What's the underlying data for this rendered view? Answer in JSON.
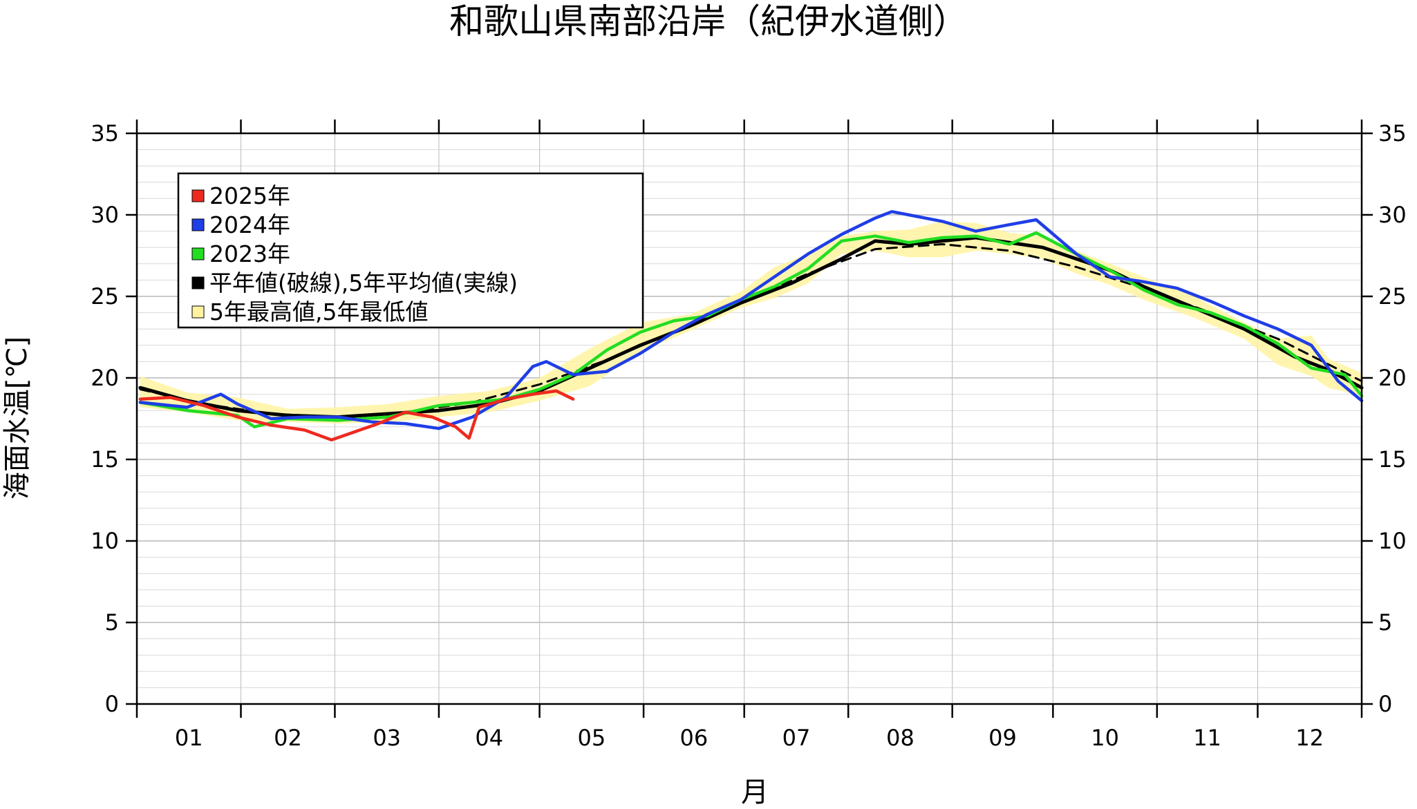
{
  "chart_data": {
    "type": "line",
    "title": "和歌山県南部沿岸（紀伊水道側）",
    "xlabel": "月",
    "ylabel": "海面水温[℃]",
    "ylim": [
      0,
      35
    ],
    "xlim": [
      0,
      365
    ],
    "y_ticks": [
      "0",
      "5",
      "10",
      "15",
      "20",
      "25",
      "30",
      "35"
    ],
    "x_ticks": [
      "01",
      "02",
      "03",
      "04",
      "05",
      "06",
      "07",
      "08",
      "09",
      "10",
      "11",
      "12"
    ],
    "grid": true,
    "legend_position": "top-left",
    "legend": [
      {
        "label": "2025年",
        "color": "#ee2a1f"
      },
      {
        "label": "2024年",
        "color": "#1f3ee6"
      },
      {
        "label": "2023年",
        "color": "#22dd22"
      },
      {
        "label": "平年値(破線),5年平均値(実線)",
        "color": "#000000"
      },
      {
        "label": "5年最高値,5年最低値",
        "color": "#fff3a0"
      }
    ],
    "series": [
      {
        "name": "2025年",
        "color": "#ee2a1f",
        "x": [
          1,
          10,
          20,
          30,
          40,
          50,
          58,
          65,
          72,
          80,
          88,
          95,
          99,
          102,
          110,
          118,
          125,
          130
        ],
        "y": [
          18.7,
          18.8,
          18.3,
          17.6,
          17.1,
          16.8,
          16.2,
          16.7,
          17.2,
          17.9,
          17.6,
          17.0,
          16.3,
          18.2,
          18.7,
          19.0,
          19.2,
          18.7
        ]
      },
      {
        "name": "2024年",
        "color": "#1f3ee6",
        "x": [
          1,
          15,
          25,
          30,
          40,
          50,
          60,
          70,
          80,
          90,
          100,
          110,
          118,
          122,
          130,
          140,
          150,
          160,
          170,
          180,
          190,
          200,
          210,
          215,
          220,
          225,
          230,
          240,
          250,
          260,
          268,
          280,
          290,
          300,
          310,
          320,
          330,
          340,
          350,
          358,
          365
        ],
        "y": [
          18.5,
          18.2,
          19.0,
          18.4,
          17.5,
          17.6,
          17.6,
          17.3,
          17.2,
          16.9,
          17.6,
          18.8,
          20.7,
          21.0,
          20.2,
          20.4,
          21.5,
          22.8,
          23.9,
          24.8,
          26.2,
          27.6,
          28.8,
          29.3,
          29.8,
          30.2,
          30.0,
          29.6,
          29.0,
          29.4,
          29.7,
          27.6,
          26.2,
          25.9,
          25.5,
          24.7,
          23.8,
          23.0,
          22.0,
          19.8,
          18.6
        ]
      },
      {
        "name": "2023年",
        "color": "#22dd22",
        "x": [
          1,
          15,
          30,
          35,
          45,
          60,
          75,
          90,
          100,
          110,
          120,
          130,
          140,
          150,
          160,
          170,
          180,
          190,
          200,
          210,
          220,
          230,
          240,
          250,
          260,
          268,
          280,
          290,
          300,
          310,
          320,
          330,
          340,
          350,
          360,
          365
        ],
        "y": [
          18.5,
          18.0,
          17.7,
          17.0,
          17.5,
          17.4,
          17.6,
          18.3,
          18.5,
          18.7,
          19.3,
          20.2,
          21.7,
          22.8,
          23.5,
          23.8,
          24.8,
          25.6,
          26.7,
          28.4,
          28.7,
          28.3,
          28.6,
          28.7,
          28.2,
          28.9,
          27.6,
          26.6,
          25.4,
          24.5,
          24.0,
          23.2,
          22.1,
          20.6,
          20.2,
          18.9
        ]
      },
      {
        "name": "5年平均値",
        "color": "#000000",
        "style": "solid",
        "x": [
          1,
          15,
          30,
          45,
          60,
          75,
          90,
          105,
          120,
          135,
          150,
          165,
          180,
          195,
          210,
          220,
          230,
          240,
          250,
          260,
          270,
          280,
          290,
          300,
          315,
          330,
          345,
          355,
          365
        ],
        "y": [
          19.4,
          18.6,
          18.0,
          17.7,
          17.6,
          17.8,
          18.0,
          18.4,
          19.2,
          20.6,
          22.0,
          23.2,
          24.6,
          25.8,
          27.3,
          28.4,
          28.2,
          28.4,
          28.6,
          28.3,
          28.0,
          27.3,
          26.6,
          25.6,
          24.3,
          23.0,
          21.3,
          20.5,
          19.4
        ]
      },
      {
        "name": "平年値",
        "color": "#000000",
        "style": "dashed",
        "x": [
          1,
          20,
          40,
          60,
          80,
          100,
          120,
          140,
          160,
          180,
          200,
          220,
          240,
          260,
          280,
          300,
          320,
          340,
          365
        ],
        "y": [
          19.3,
          18.4,
          17.8,
          17.6,
          17.9,
          18.5,
          19.6,
          21.1,
          22.8,
          24.6,
          26.4,
          27.9,
          28.2,
          27.8,
          26.8,
          25.5,
          24.0,
          22.4,
          19.8
        ]
      }
    ],
    "band": {
      "name": "5年最高値,5年最低値",
      "color": "#fff3a0",
      "x": [
        1,
        15,
        30,
        45,
        60,
        75,
        90,
        105,
        120,
        135,
        150,
        165,
        180,
        190,
        200,
        210,
        220,
        230,
        240,
        250,
        260,
        270,
        280,
        290,
        300,
        315,
        330,
        340,
        350,
        355,
        365
      ],
      "upper": [
        20.1,
        19.1,
        18.8,
        18.1,
        18.2,
        18.4,
        18.9,
        19.2,
        20.0,
        21.8,
        23.4,
        23.9,
        25.3,
        26.8,
        27.6,
        28.7,
        29.0,
        29.1,
        29.6,
        29.5,
        28.9,
        28.7,
        27.8,
        27.0,
        26.2,
        25.0,
        23.4,
        22.4,
        22.6,
        21.2,
        20.3
      ],
      "lower": [
        18.2,
        17.9,
        17.4,
        17.3,
        17.2,
        17.3,
        17.6,
        17.9,
        18.6,
        19.5,
        21.6,
        22.9,
        24.3,
        24.9,
        25.8,
        27.6,
        27.8,
        27.4,
        27.4,
        27.8,
        27.6,
        27.3,
        26.4,
        25.7,
        24.8,
        23.7,
        22.4,
        20.8,
        20.1,
        19.4,
        18.9
      ]
    }
  }
}
